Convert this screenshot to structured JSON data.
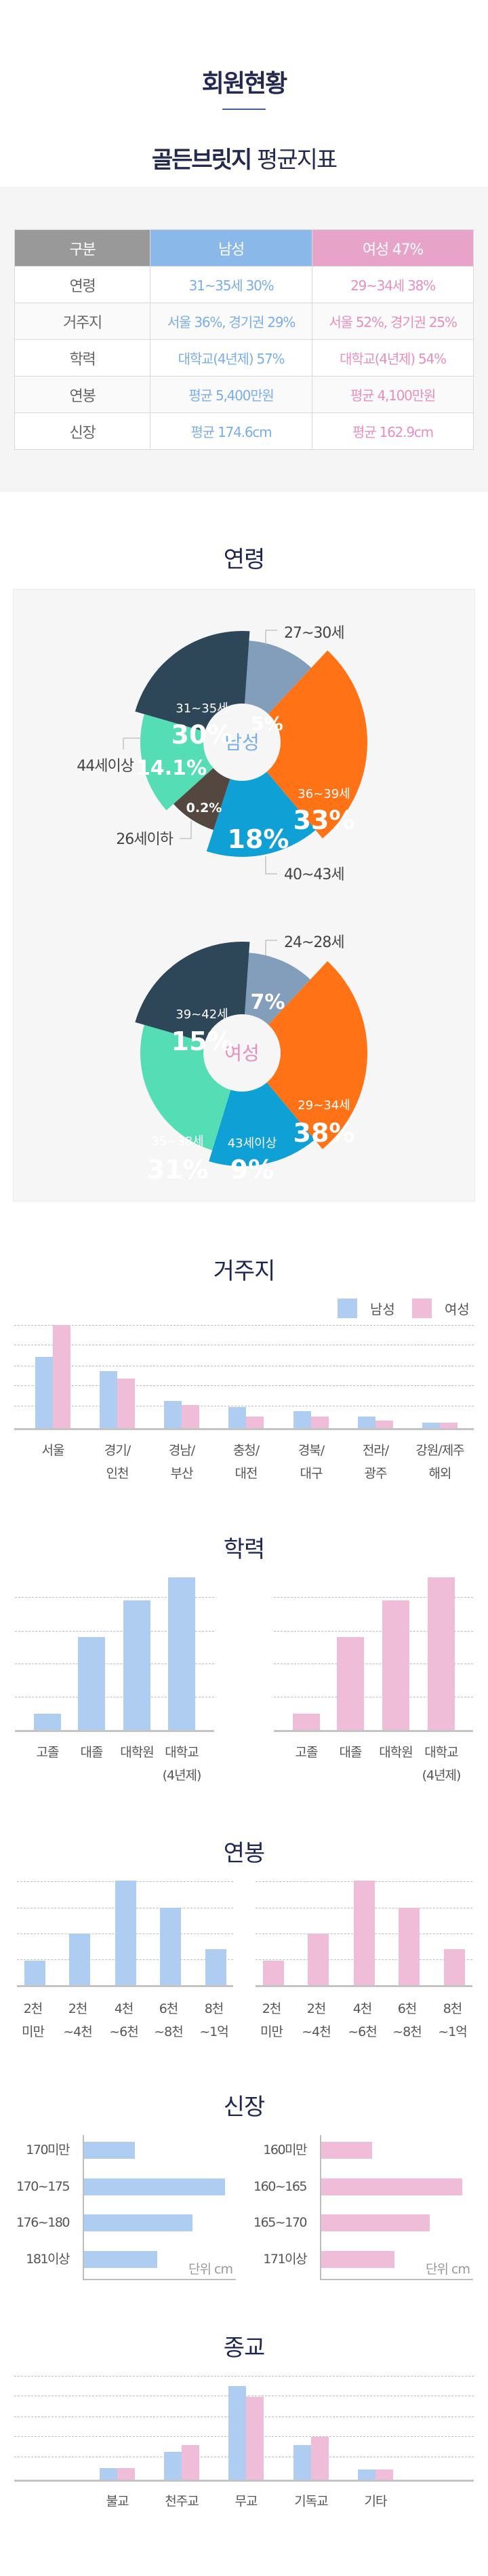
{
  "header": {
    "title": "회원현황",
    "subtitle_bold": "골든브릿지",
    "subtitle_light": "평균지표"
  },
  "colors": {
    "navy": "#23294f",
    "male": "#aecdf0",
    "female": "#f0bdd8",
    "male_text": "#7aaee6",
    "female_text": "#e78fbf",
    "pie": {
      "slate": "#839ebb",
      "orange": "#ff7316",
      "blue": "#0fa0d5",
      "brown": "#54473f",
      "teal": "#55ddb5",
      "dark": "#2d4658"
    }
  },
  "summary_table": {
    "headers": [
      "구분",
      "남성",
      "여성 47%"
    ],
    "rows": [
      {
        "label": "연령",
        "male": "31~35세 30%",
        "female": "29~34세 38%"
      },
      {
        "label": "거주지",
        "male": "서울 36%, 경기권 29%",
        "female": "서울 52%, 경기권 25%"
      },
      {
        "label": "학력",
        "male": "대학교(4년제) 57%",
        "female": "대학교(4년제) 54%"
      },
      {
        "label": "연봉",
        "male": "평균 5,400만원",
        "female": "평균 4,100만원"
      },
      {
        "label": "신장",
        "male": "평균 174.6cm",
        "female": "평균 162.9cm"
      }
    ]
  },
  "sections": {
    "age": "연령",
    "residence": "거주지",
    "education": "학력",
    "salary": "연봉",
    "height": "신장",
    "religion": "종교"
  },
  "legend": {
    "male": "남성",
    "female": "여성"
  },
  "chart_data": [
    {
      "id": "age_male",
      "type": "pie",
      "title": "연령",
      "center_label": "남성",
      "slices": [
        {
          "label": "27~30세",
          "value": 5,
          "display": "5%",
          "color": "slate",
          "start": 4,
          "end": 43,
          "r": 150,
          "inside_label": false,
          "callout": true
        },
        {
          "label": "36~39세",
          "value": 33,
          "display": "33%",
          "color": "orange",
          "start": 43,
          "end": 140,
          "r": 185,
          "inside_label": true
        },
        {
          "label": "40~43세",
          "value": 18,
          "display": "18%",
          "color": "blue",
          "start": 140,
          "end": 198,
          "r": 169,
          "inside_label": false,
          "callout": true
        },
        {
          "label": "26세이하",
          "value": 0.2,
          "display": "0.2%",
          "color": "brown",
          "start": 198,
          "end": 228,
          "r": 136,
          "inside_label": false,
          "callout": true
        },
        {
          "label": "44세이상",
          "value": 14.1,
          "display": "14.1%",
          "color": "teal",
          "start": 228,
          "end": 286,
          "r": 150,
          "inside_label": false,
          "callout": true
        },
        {
          "label": "31~35세",
          "value": 30,
          "display": "30%",
          "color": "dark",
          "start": 286,
          "end": 364,
          "r": 164,
          "inside_label": true
        }
      ]
    },
    {
      "id": "age_female",
      "type": "pie",
      "title": "연령",
      "center_label": "여성",
      "slices": [
        {
          "label": "24~28세",
          "value": 7,
          "display": "7%",
          "color": "slate",
          "start": 4,
          "end": 43,
          "r": 148,
          "inside_label": false,
          "callout": true
        },
        {
          "label": "29~34세",
          "value": 38,
          "display": "38%",
          "color": "orange",
          "start": 43,
          "end": 140,
          "r": 185,
          "inside_label": true
        },
        {
          "label": "43세이상",
          "value": 9,
          "display": "9%",
          "color": "blue",
          "start": 140,
          "end": 197,
          "r": 167,
          "inside_label": true
        },
        {
          "label": "35~38세",
          "value": 31,
          "display": "31%",
          "color": "teal",
          "start": 197,
          "end": 286,
          "r": 150,
          "inside_label": true
        },
        {
          "label": "39~42세",
          "value": 15,
          "display": "15%",
          "color": "dark",
          "start": 286,
          "end": 364,
          "r": 164,
          "inside_label": true
        }
      ]
    },
    {
      "id": "residence",
      "type": "bar",
      "title": "거주지",
      "categories": [
        "서울",
        "경기/\n인천",
        "경남/\n부산",
        "충청/\n대전",
        "경북/\n대구",
        "전라/\n광주",
        "강원/제주\n해외"
      ],
      "series": [
        {
          "name": "남성",
          "values": [
            36,
            29,
            14,
            11,
            9,
            6,
            3
          ]
        },
        {
          "name": "여성",
          "values": [
            52,
            25,
            12,
            6,
            6,
            4,
            3
          ]
        }
      ],
      "ylim": [
        0,
        52
      ],
      "grid": true,
      "legend_position": "top-right"
    },
    {
      "id": "education_male",
      "type": "bar",
      "title": "학력",
      "categories": [
        "고졸",
        "대졸",
        "대학원",
        "대학교\n(4년제)"
      ],
      "series": [
        {
          "name": "남성",
          "values": [
            11,
            61,
            85,
            100
          ]
        }
      ],
      "ylabel": "relative index",
      "ylim": [
        0,
        100
      ],
      "grid": true
    },
    {
      "id": "education_female",
      "type": "bar",
      "title": "학력",
      "categories": [
        "고졸",
        "대졸",
        "대학원",
        "대학교\n(4년제)"
      ],
      "series": [
        {
          "name": "여성",
          "values": [
            11,
            61,
            85,
            100
          ]
        }
      ],
      "ylabel": "relative index",
      "ylim": [
        0,
        100
      ],
      "grid": true
    },
    {
      "id": "salary_male",
      "type": "bar",
      "title": "연봉",
      "categories": [
        "2천\n미만",
        "2천\n~4천",
        "4천\n~6천",
        "6천\n~8천",
        "8천\n~1억"
      ],
      "series": [
        {
          "name": "남성",
          "values": [
            24,
            50,
            100,
            74,
            35
          ]
        }
      ],
      "ylabel": "relative index",
      "ylim": [
        0,
        100
      ],
      "grid": true
    },
    {
      "id": "salary_female",
      "type": "bar",
      "title": "연봉",
      "categories": [
        "2천\n미만",
        "2천\n~4천",
        "4천\n~6천",
        "6천\n~8천",
        "8천\n~1억"
      ],
      "series": [
        {
          "name": "여성",
          "values": [
            24,
            50,
            100,
            74,
            35
          ]
        }
      ],
      "ylabel": "relative index",
      "ylim": [
        0,
        100
      ],
      "grid": true
    },
    {
      "id": "height_male",
      "type": "bar",
      "orientation": "horizontal",
      "title": "신장",
      "categories": [
        "170미만",
        "170~175",
        "176~180",
        "181이상"
      ],
      "series": [
        {
          "name": "남성",
          "values": [
            36,
            100,
            77,
            52
          ]
        }
      ],
      "unit_label": "단위 cm",
      "xlim": [
        0,
        100
      ]
    },
    {
      "id": "height_female",
      "type": "bar",
      "orientation": "horizontal",
      "title": "신장",
      "categories": [
        "160미만",
        "160~165",
        "165~170",
        "171이상"
      ],
      "series": [
        {
          "name": "여성",
          "values": [
            36,
            100,
            77,
            52
          ]
        }
      ],
      "unit_label": "단위 cm",
      "xlim": [
        0,
        100
      ]
    },
    {
      "id": "religion",
      "type": "bar",
      "title": "종교",
      "categories": [
        "불교",
        "천주교",
        "무교",
        "기독교",
        "기타"
      ],
      "series": [
        {
          "name": "남성",
          "values": [
            6,
            14,
            46.5,
            17.5,
            5.5
          ]
        },
        {
          "name": "여성",
          "values": [
            6,
            17.5,
            41,
            21.5,
            5.5
          ]
        }
      ],
      "ylim": [
        0,
        50
      ],
      "grid": true
    }
  ]
}
